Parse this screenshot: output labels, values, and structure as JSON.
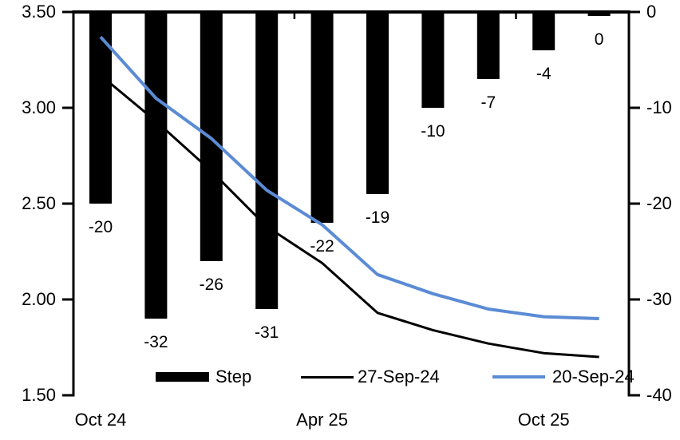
{
  "chart_data": {
    "type": "combo-bar-line",
    "n_categories": 10,
    "x_axis": {
      "tick_labels": [
        {
          "label": "Oct 24",
          "category_index": 0
        },
        {
          "label": "Apr 25",
          "category_index": 4
        },
        {
          "label": "Oct 25",
          "category_index": 8
        }
      ]
    },
    "left_axis": {
      "min": 1.5,
      "max": 3.5,
      "tick_labels": [
        "3.50",
        "3.00",
        "2.50",
        "2.00",
        "1.50"
      ]
    },
    "right_axis": {
      "min": -40,
      "max": 0,
      "tick_labels": [
        "0",
        "-10",
        "-20",
        "-30",
        "-40"
      ]
    },
    "bar_series": {
      "name": "Step",
      "axis": "right",
      "color": "#000000",
      "values": [
        -20,
        -32,
        -26,
        -31,
        -22,
        -19,
        -10,
        -7,
        -4,
        0
      ],
      "data_labels": [
        "-20",
        "-32",
        "-26",
        "-31",
        "-22",
        "-19",
        "-10",
        "-7",
        "-4",
        "0"
      ]
    },
    "line_series": [
      {
        "name": "27-Sep-24",
        "axis": "left",
        "color": "#000000",
        "stroke_width": 3,
        "values": [
          3.17,
          2.93,
          2.67,
          2.38,
          2.19,
          1.93,
          1.84,
          1.77,
          1.72,
          1.7
        ]
      },
      {
        "name": "20-Sep-24",
        "axis": "left",
        "color": "#5B8BD4",
        "stroke_width": 4,
        "values": [
          3.37,
          3.05,
          2.84,
          2.57,
          2.39,
          2.13,
          2.03,
          1.95,
          1.91,
          1.9
        ]
      }
    ],
    "legend": [
      {
        "label": "Step",
        "type": "bar",
        "color": "#000000"
      },
      {
        "label": "27-Sep-24",
        "type": "line",
        "color": "#000000"
      },
      {
        "label": "20-Sep-24",
        "type": "line",
        "color": "#5B8BD4"
      }
    ],
    "grid": false,
    "legend_position": "inside-bottom"
  }
}
